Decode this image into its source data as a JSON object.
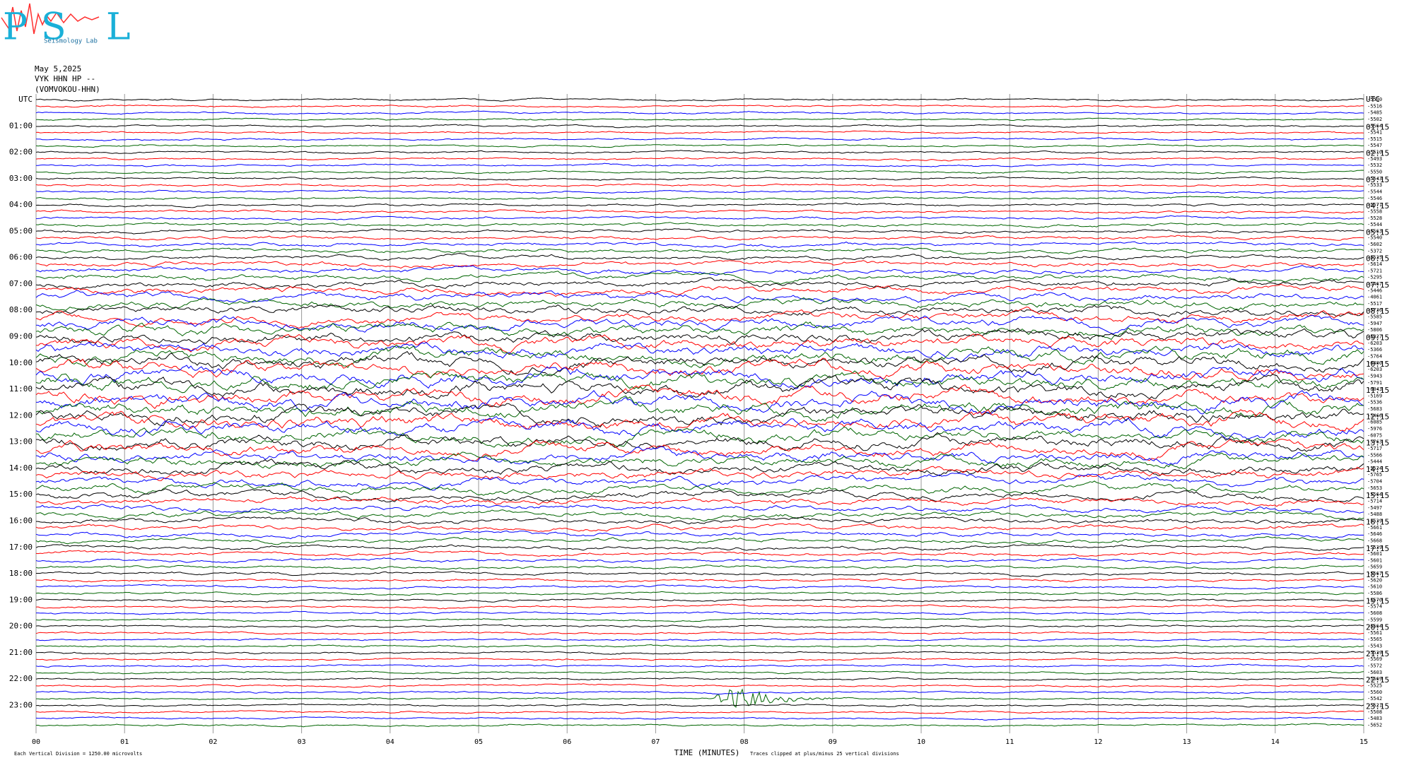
{
  "chart_data": {
    "type": "helicorder",
    "logo": {
      "letters": [
        "P",
        "S",
        "L"
      ],
      "subtitle": "Seismology Lab"
    },
    "date": "May 5,2025",
    "station": "VYK HHN HP --",
    "channel": "(VOMVOKOU-HHN)",
    "left_labels": [
      "UTC",
      "01:00",
      "02:00",
      "03:00",
      "04:00",
      "05:00",
      "06:00",
      "07:00",
      "08:00",
      "09:00",
      "10:00",
      "11:00",
      "12:00",
      "13:00",
      "14:00",
      "15:00",
      "16:00",
      "17:00",
      "18:00",
      "19:00",
      "20:00",
      "21:00",
      "22:00",
      "23:00"
    ],
    "right_labels": [
      "UTC",
      "01:15",
      "02:15",
      "03:15",
      "04:15",
      "05:15",
      "06:15",
      "07:15",
      "08:15",
      "09:15",
      "10:15",
      "11:15",
      "12:15",
      "13:15",
      "14:15",
      "15:15",
      "16:15",
      "17:15",
      "18:15",
      "19:15",
      "20:15",
      "21:15",
      "22:15",
      "23:15"
    ],
    "trace_offsets": [
      -5530,
      -5516,
      -5485,
      -5502,
      -5564,
      -5541,
      -5515,
      -5547,
      -5510,
      -5493,
      -5532,
      -5550,
      -5543,
      -5533,
      -5544,
      -5546,
      -5671,
      -5558,
      -5528,
      -5544,
      -5563,
      -5540,
      -5602,
      -5372,
      -5535,
      -5614,
      -5721,
      -5295,
      -5467,
      -5446,
      -4061,
      -5517,
      -5736,
      -5585,
      -5947,
      -5806,
      -5327,
      -6203,
      -5366,
      -5764,
      -6480,
      -6203,
      -5943,
      -5791,
      -6043,
      -5169,
      -5536,
      -5683,
      -5466,
      -6085,
      -5976,
      -6075,
      -5763,
      -5717,
      -5566,
      -5444,
      -5524,
      -5765,
      -5704,
      -5653,
      -5564,
      -5714,
      -5497,
      -5488,
      -5539,
      -5661,
      -5646,
      -5668,
      -5539,
      -5601,
      -5601,
      -5659,
      -5567,
      -5620,
      -5610,
      -5586,
      -5570,
      -5574,
      -5608,
      -5599,
      -5564,
      -5561,
      -5565,
      -5543,
      -5539,
      -5569,
      -5572,
      -5603,
      -5569,
      -5525,
      -5560,
      -5542,
      -5521,
      -5508,
      -5483,
      -5652
    ],
    "colors": [
      "#000000",
      "#ff0000",
      "#0000ff",
      "#006400"
    ],
    "xlim": [
      0,
      15
    ],
    "xticks": [
      {
        "value": 0,
        "label": "00"
      },
      {
        "value": 1,
        "label": "01"
      },
      {
        "value": 2,
        "label": "02"
      },
      {
        "value": 3,
        "label": "03"
      },
      {
        "value": 4,
        "label": "04"
      },
      {
        "value": 5,
        "label": "05"
      },
      {
        "value": 6,
        "label": "06"
      },
      {
        "value": 7,
        "label": "07"
      },
      {
        "value": 8,
        "label": "08"
      },
      {
        "value": 9,
        "label": "09"
      },
      {
        "value": 10,
        "label": "10"
      },
      {
        "value": 11,
        "label": "11"
      },
      {
        "value": 12,
        "label": "12"
      },
      {
        "value": 13,
        "label": "13"
      },
      {
        "value": 14,
        "label": "14"
      },
      15
    ],
    "x_label": "TIME (MINUTES)",
    "scale_note": "Each Vertical Division = 1250.00 microvolts",
    "clip_note": "Traces clipped at plus/minus 25 vertical divisions"
  }
}
